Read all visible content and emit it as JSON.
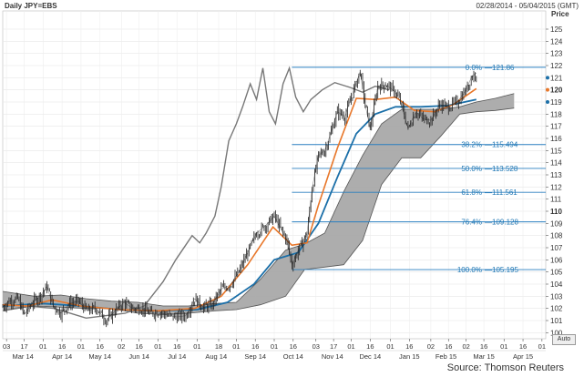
{
  "header": {
    "title": "Daily JPY=EBS",
    "range": "02/28/2014 - 05/04/2015 (GMT)"
  },
  "source": "Source: Thomson Reuters",
  "controls": {
    "auto_label": "Auto"
  },
  "colors": {
    "price": "#222222",
    "ma_orange": "#e8772a",
    "ma_blue": "#1b6fa8",
    "lagging": "#777777",
    "cloud": "#a9a9a9",
    "fib": "#2a7fc0"
  },
  "chart_data": {
    "type": "line",
    "title": "",
    "xlabel": "",
    "ylabel": "Price",
    "ylim": [
      99.5,
      126.5
    ],
    "xlim": [
      "2014-02-28",
      "2015-05-04"
    ],
    "grid": true,
    "y_ticks": [
      100,
      101,
      102,
      103,
      104,
      105,
      106,
      107,
      108,
      109,
      110,
      111,
      112,
      113,
      114,
      115,
      116,
      117,
      118,
      119,
      120,
      121,
      122,
      123,
      124,
      125
    ],
    "y_major_ticks": [
      110,
      120
    ],
    "x_day_ticks": [
      {
        "label": "03",
        "date": "2014-03-03"
      },
      {
        "label": "17",
        "date": "2014-03-17"
      },
      {
        "label": "01",
        "date": "2014-04-01"
      },
      {
        "label": "16",
        "date": "2014-04-16"
      },
      {
        "label": "01",
        "date": "2014-05-01"
      },
      {
        "label": "16",
        "date": "2014-05-16"
      },
      {
        "label": "02",
        "date": "2014-06-02"
      },
      {
        "label": "16",
        "date": "2014-06-16"
      },
      {
        "label": "01",
        "date": "2014-07-01"
      },
      {
        "label": "16",
        "date": "2014-07-16"
      },
      {
        "label": "01",
        "date": "2014-08-01"
      },
      {
        "label": "18",
        "date": "2014-08-18"
      },
      {
        "label": "01",
        "date": "2014-09-01"
      },
      {
        "label": "16",
        "date": "2014-09-16"
      },
      {
        "label": "01",
        "date": "2014-10-01"
      },
      {
        "label": "16",
        "date": "2014-10-16"
      },
      {
        "label": "03",
        "date": "2014-11-03"
      },
      {
        "label": "17",
        "date": "2014-11-17"
      },
      {
        "label": "01",
        "date": "2014-12-01"
      },
      {
        "label": "16",
        "date": "2014-12-16"
      },
      {
        "label": "01",
        "date": "2015-01-01"
      },
      {
        "label": "16",
        "date": "2015-01-16"
      },
      {
        "label": "02",
        "date": "2015-02-02"
      },
      {
        "label": "16",
        "date": "2015-02-16"
      },
      {
        "label": "02",
        "date": "2015-03-02"
      },
      {
        "label": "16",
        "date": "2015-03-16"
      },
      {
        "label": "01",
        "date": "2015-04-01"
      },
      {
        "label": "16",
        "date": "2015-04-16"
      },
      {
        "label": "01",
        "date": "2015-05-01"
      }
    ],
    "x_month_labels": [
      {
        "label": "Mar 14",
        "date": "2014-03-16"
      },
      {
        "label": "Apr 14",
        "date": "2014-04-16"
      },
      {
        "label": "May 14",
        "date": "2014-05-16"
      },
      {
        "label": "Jun 14",
        "date": "2014-06-16"
      },
      {
        "label": "Jul 14",
        "date": "2014-07-16"
      },
      {
        "label": "Aug 14",
        "date": "2014-08-16"
      },
      {
        "label": "Sep 14",
        "date": "2014-09-16"
      },
      {
        "label": "Oct 14",
        "date": "2014-10-16"
      },
      {
        "label": "Nov 14",
        "date": "2014-11-16"
      },
      {
        "label": "Dec 14",
        "date": "2014-12-16"
      },
      {
        "label": "Jan 15",
        "date": "2015-01-16"
      },
      {
        "label": "Feb 15",
        "date": "2015-02-14"
      },
      {
        "label": "Mar 15",
        "date": "2015-03-16"
      },
      {
        "label": "Apr 15",
        "date": "2015-04-16"
      }
    ],
    "fibonacci": {
      "start_date": "2014-10-15",
      "levels": [
        {
          "label": "0.0%",
          "value": 121.86,
          "text": "121.86"
        },
        {
          "label": "38.2%",
          "value": 115.494,
          "text": "115.494"
        },
        {
          "label": "50.0%",
          "value": 113.528,
          "text": "113.528"
        },
        {
          "label": "61.8%",
          "value": 111.561,
          "text": "111.561"
        },
        {
          "label": "76.4%",
          "value": 109.128,
          "text": "109.128"
        },
        {
          "label": "100.0%",
          "value": 105.195,
          "text": "105.195"
        }
      ]
    },
    "price_markers": [
      {
        "label": "121",
        "value": 121.0
      },
      {
        "label": "120",
        "value": 120.0
      },
      {
        "label": "119",
        "value": 119.0
      }
    ],
    "series": [
      {
        "key": "price",
        "points": [
          [
            "2014-02-28",
            102.1
          ],
          [
            "2014-03-05",
            102.6
          ],
          [
            "2014-03-12",
            102.8
          ],
          [
            "2014-03-17",
            101.5
          ],
          [
            "2014-03-24",
            102.5
          ],
          [
            "2014-03-31",
            103.2
          ],
          [
            "2014-04-04",
            103.8
          ],
          [
            "2014-04-09",
            102.2
          ],
          [
            "2014-04-15",
            101.6
          ],
          [
            "2014-04-22",
            102.4
          ],
          [
            "2014-04-29",
            102.6
          ],
          [
            "2014-05-06",
            101.8
          ],
          [
            "2014-05-13",
            102.0
          ],
          [
            "2014-05-21",
            101.0
          ],
          [
            "2014-05-28",
            101.8
          ],
          [
            "2014-06-04",
            102.5
          ],
          [
            "2014-06-11",
            102.0
          ],
          [
            "2014-06-18",
            102.0
          ],
          [
            "2014-06-25",
            101.6
          ],
          [
            "2014-07-02",
            101.7
          ],
          [
            "2014-07-09",
            101.4
          ],
          [
            "2014-07-16",
            101.3
          ],
          [
            "2014-07-23",
            101.4
          ],
          [
            "2014-07-30",
            102.8
          ],
          [
            "2014-08-06",
            102.1
          ],
          [
            "2014-08-13",
            102.3
          ],
          [
            "2014-08-20",
            103.6
          ],
          [
            "2014-08-27",
            103.9
          ],
          [
            "2014-09-03",
            105.0
          ],
          [
            "2014-09-10",
            106.6
          ],
          [
            "2014-09-17",
            108.2
          ],
          [
            "2014-09-24",
            108.8
          ],
          [
            "2014-10-01",
            109.6
          ],
          [
            "2014-10-07",
            108.4
          ],
          [
            "2014-10-11",
            107.6
          ],
          [
            "2014-10-15",
            105.6
          ],
          [
            "2014-10-21",
            107.0
          ],
          [
            "2014-10-27",
            108.2
          ],
          [
            "2014-10-31",
            111.9
          ],
          [
            "2014-11-05",
            114.6
          ],
          [
            "2014-11-10",
            115.0
          ],
          [
            "2014-11-14",
            116.2
          ],
          [
            "2014-11-20",
            118.2
          ],
          [
            "2014-11-26",
            117.8
          ],
          [
            "2014-12-03",
            120.0
          ],
          [
            "2014-12-08",
            121.5
          ],
          [
            "2014-12-12",
            118.8
          ],
          [
            "2014-12-16",
            116.8
          ],
          [
            "2014-12-22",
            120.3
          ],
          [
            "2014-12-29",
            120.4
          ],
          [
            "2015-01-05",
            119.8
          ],
          [
            "2015-01-09",
            119.0
          ],
          [
            "2015-01-15",
            116.8
          ],
          [
            "2015-01-21",
            118.2
          ],
          [
            "2015-01-27",
            117.6
          ],
          [
            "2015-02-02",
            117.5
          ],
          [
            "2015-02-09",
            118.8
          ],
          [
            "2015-02-16",
            118.6
          ],
          [
            "2015-02-23",
            119.0
          ],
          [
            "2015-03-02",
            120.0
          ],
          [
            "2015-03-06",
            121.0
          ],
          [
            "2015-03-10",
            121.4
          ]
        ]
      },
      {
        "key": "ma_orange",
        "points": [
          [
            "2014-02-28",
            102.3
          ],
          [
            "2014-03-20",
            102.2
          ],
          [
            "2014-04-08",
            102.7
          ],
          [
            "2014-05-01",
            102.2
          ],
          [
            "2014-06-01",
            101.9
          ],
          [
            "2014-07-01",
            101.8
          ],
          [
            "2014-07-30",
            102.0
          ],
          [
            "2014-08-20",
            103.0
          ],
          [
            "2014-09-10",
            105.6
          ],
          [
            "2014-09-30",
            108.7
          ],
          [
            "2014-10-15",
            107.2
          ],
          [
            "2014-10-27",
            107.4
          ],
          [
            "2014-11-05",
            110.5
          ],
          [
            "2014-11-20",
            115.2
          ],
          [
            "2014-12-05",
            119.3
          ],
          [
            "2014-12-20",
            119.2
          ],
          [
            "2015-01-05",
            119.4
          ],
          [
            "2015-01-20",
            118.3
          ],
          [
            "2015-02-05",
            118.2
          ],
          [
            "2015-02-20",
            118.8
          ],
          [
            "2015-03-10",
            120.1
          ]
        ]
      },
      {
        "key": "ma_blue",
        "points": [
          [
            "2014-02-28",
            102.2
          ],
          [
            "2014-04-01",
            102.4
          ],
          [
            "2014-05-01",
            102.2
          ],
          [
            "2014-06-01",
            101.9
          ],
          [
            "2014-07-01",
            101.8
          ],
          [
            "2014-08-01",
            101.9
          ],
          [
            "2014-08-25",
            102.5
          ],
          [
            "2014-09-15",
            104.0
          ],
          [
            "2014-10-01",
            106.0
          ],
          [
            "2014-10-20",
            106.6
          ],
          [
            "2014-11-05",
            109.0
          ],
          [
            "2014-11-20",
            112.8
          ],
          [
            "2014-12-05",
            116.4
          ],
          [
            "2014-12-20",
            118.0
          ],
          [
            "2015-01-05",
            118.6
          ],
          [
            "2015-01-25",
            118.6
          ],
          [
            "2015-02-15",
            118.7
          ],
          [
            "2015-03-10",
            119.2
          ]
        ]
      },
      {
        "key": "lagging",
        "points": [
          [
            "2014-02-28",
            101.8
          ],
          [
            "2014-03-20",
            102.2
          ],
          [
            "2014-04-10",
            102.0
          ],
          [
            "2014-05-05",
            101.2
          ],
          [
            "2014-06-05",
            101.6
          ],
          [
            "2014-06-20",
            102.2
          ],
          [
            "2014-07-05",
            104.2
          ],
          [
            "2014-07-15",
            106.0
          ],
          [
            "2014-07-28",
            108.0
          ],
          [
            "2014-08-03",
            107.4
          ],
          [
            "2014-08-08",
            108.2
          ],
          [
            "2014-08-15",
            109.6
          ],
          [
            "2014-08-20",
            112.0
          ],
          [
            "2014-08-26",
            115.8
          ],
          [
            "2014-09-01",
            117.2
          ],
          [
            "2014-09-06",
            118.6
          ],
          [
            "2014-09-12",
            120.5
          ],
          [
            "2014-09-17",
            119.2
          ],
          [
            "2014-09-22",
            121.8
          ],
          [
            "2014-09-27",
            118.2
          ],
          [
            "2014-10-02",
            117.2
          ],
          [
            "2014-10-08",
            120.5
          ],
          [
            "2014-10-13",
            121.8
          ],
          [
            "2014-10-18",
            119.4
          ],
          [
            "2014-10-24",
            118.2
          ],
          [
            "2014-10-30",
            119.2
          ],
          [
            "2014-11-08",
            120.0
          ],
          [
            "2014-11-18",
            120.6
          ],
          [
            "2014-11-30",
            120.2
          ],
          [
            "2014-12-10",
            119.8
          ],
          [
            "2014-12-20",
            120.3
          ],
          [
            "2014-12-31",
            120.0
          ]
        ]
      },
      {
        "key": "cloud_upper",
        "points": [
          [
            "2014-02-28",
            103.4
          ],
          [
            "2014-03-25",
            103.0
          ],
          [
            "2014-04-15",
            103.1
          ],
          [
            "2014-05-05",
            102.8
          ],
          [
            "2014-05-25",
            102.6
          ],
          [
            "2014-06-15",
            102.5
          ],
          [
            "2014-07-05",
            102.2
          ],
          [
            "2014-07-25",
            102.2
          ],
          [
            "2014-08-15",
            102.4
          ],
          [
            "2014-09-01",
            102.5
          ],
          [
            "2014-09-20",
            104.4
          ],
          [
            "2014-10-10",
            106.8
          ],
          [
            "2014-10-25",
            107.3
          ],
          [
            "2014-11-10",
            108.2
          ],
          [
            "2014-11-25",
            111.6
          ],
          [
            "2014-12-10",
            114.6
          ],
          [
            "2014-12-25",
            117.2
          ],
          [
            "2015-01-10",
            118.4
          ],
          [
            "2015-01-25",
            118.4
          ],
          [
            "2015-02-10",
            118.4
          ],
          [
            "2015-02-25",
            118.6
          ],
          [
            "2015-03-10",
            119.0
          ],
          [
            "2015-03-25",
            119.3
          ],
          [
            "2015-04-09",
            119.7
          ]
        ]
      },
      {
        "key": "cloud_lower",
        "points": [
          [
            "2014-02-28",
            101.8
          ],
          [
            "2014-03-25",
            102.2
          ],
          [
            "2014-04-15",
            102.1
          ],
          [
            "2014-05-05",
            102.0
          ],
          [
            "2014-05-25",
            102.0
          ],
          [
            "2014-06-15",
            101.6
          ],
          [
            "2014-07-05",
            101.5
          ],
          [
            "2014-07-25",
            101.6
          ],
          [
            "2014-08-15",
            101.8
          ],
          [
            "2014-09-01",
            101.9
          ],
          [
            "2014-09-20",
            102.3
          ],
          [
            "2014-10-10",
            103.0
          ],
          [
            "2014-10-25",
            105.2
          ],
          [
            "2014-11-10",
            105.4
          ],
          [
            "2014-11-25",
            105.6
          ],
          [
            "2014-12-10",
            107.6
          ],
          [
            "2014-12-25",
            112.2
          ],
          [
            "2015-01-10",
            114.4
          ],
          [
            "2015-01-25",
            114.4
          ],
          [
            "2015-02-10",
            116.2
          ],
          [
            "2015-02-25",
            118.0
          ],
          [
            "2015-03-10",
            118.2
          ],
          [
            "2015-03-25",
            118.3
          ],
          [
            "2015-04-09",
            118.5
          ]
        ]
      }
    ]
  }
}
